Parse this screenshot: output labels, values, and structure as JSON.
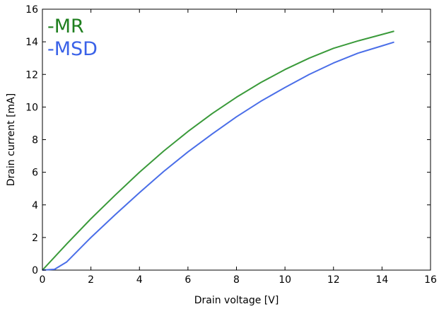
{
  "chart_data": {
    "type": "line",
    "title": "",
    "xlabel": "Drain voltage [V]",
    "ylabel": "Drain current [mA]",
    "xlim": [
      0,
      16
    ],
    "ylim": [
      0,
      16
    ],
    "xticks": [
      0,
      2,
      4,
      6,
      8,
      10,
      12,
      14,
      16
    ],
    "yticks": [
      0,
      2,
      4,
      6,
      8,
      10,
      12,
      14,
      16
    ],
    "grid": false,
    "legend_position": "top-left",
    "series": [
      {
        "name": "-MR",
        "color": "#3a9a3a",
        "label_color": "#1f7f1f",
        "x": [
          0,
          1,
          2,
          3,
          4,
          5,
          6,
          7,
          8,
          9,
          10,
          11,
          12,
          13,
          14,
          14.5
        ],
        "y": [
          0,
          1.6,
          3.15,
          4.6,
          6.0,
          7.3,
          8.5,
          9.6,
          10.6,
          11.5,
          12.3,
          13.0,
          13.6,
          14.05,
          14.45,
          14.65
        ]
      },
      {
        "name": "-MSD",
        "color": "#4a6ee8",
        "label_color": "#3a62e8",
        "x": [
          0,
          0.5,
          1,
          2,
          3,
          4,
          5,
          6,
          7,
          8,
          9,
          10,
          11,
          12,
          13,
          14,
          14.5
        ],
        "y": [
          0,
          0.05,
          0.5,
          2.0,
          3.4,
          4.75,
          6.05,
          7.25,
          8.35,
          9.4,
          10.35,
          11.2,
          12.0,
          12.7,
          13.3,
          13.75,
          13.98
        ]
      }
    ]
  }
}
